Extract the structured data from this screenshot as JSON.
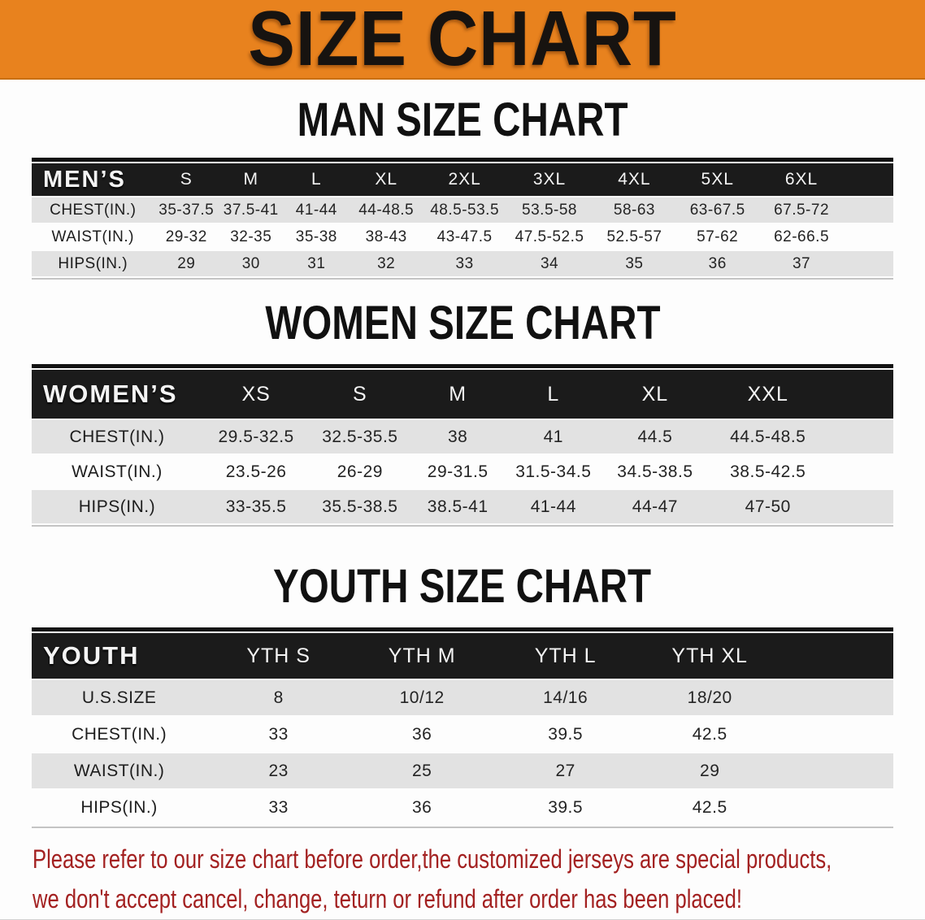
{
  "banner": {
    "title": "SIZE CHART",
    "bg_color": "#E8821E",
    "text_color": "#171310"
  },
  "sections": [
    {
      "heading": "MAN SIZE CHART",
      "table": {
        "corner": "MEN’S",
        "columns": [
          "S",
          "M",
          "L",
          "XL",
          "2XL",
          "3XL",
          "4XL",
          "5XL",
          "6XL"
        ],
        "rows": [
          {
            "label": "CHEST(IN.)",
            "values": [
              "35-37.5",
              "37.5-41",
              "41-44",
              "44-48.5",
              "48.5-53.5",
              "53.5-58",
              "58-63",
              "63-67.5",
              "67.5-72"
            ]
          },
          {
            "label": "WAIST(IN.)",
            "values": [
              "29-32",
              "32-35",
              "35-38",
              "38-43",
              "43-47.5",
              "47.5-52.5",
              "52.5-57",
              "57-62",
              "62-66.5"
            ]
          },
          {
            "label": "HIPS(IN.)",
            "values": [
              "29",
              "30",
              "31",
              "32",
              "33",
              "34",
              "35",
              "36",
              "37"
            ]
          }
        ]
      }
    },
    {
      "heading": "WOMEN SIZE CHART",
      "table": {
        "corner": "WOMEN’S",
        "columns": [
          "XS",
          "S",
          "M",
          "L",
          "XL",
          "XXL"
        ],
        "rows": [
          {
            "label": "CHEST(IN.)",
            "values": [
              "29.5-32.5",
              "32.5-35.5",
              "38",
              "41",
              "44.5",
              "44.5-48.5"
            ]
          },
          {
            "label": "WAIST(IN.)",
            "values": [
              "23.5-26",
              "26-29",
              "29-31.5",
              "31.5-34.5",
              "34.5-38.5",
              "38.5-42.5"
            ]
          },
          {
            "label": "HIPS(IN.)",
            "values": [
              "33-35.5",
              "35.5-38.5",
              "38.5-41",
              "41-44",
              "44-47",
              "47-50"
            ]
          }
        ]
      }
    },
    {
      "heading": "YOUTH SIZE CHART",
      "table": {
        "corner": "YOUTH",
        "columns": [
          "YTH S",
          "YTH M",
          "YTH L",
          "YTH XL"
        ],
        "rows": [
          {
            "label": "U.S.SIZE",
            "values": [
              "8",
              "10/12",
              "14/16",
              "18/20"
            ]
          },
          {
            "label": "CHEST(IN.)",
            "values": [
              "33",
              "36",
              "39.5",
              "42.5"
            ]
          },
          {
            "label": "WAIST(IN.)",
            "values": [
              "23",
              "25",
              "27",
              "29"
            ]
          },
          {
            "label": "HIPS(IN.)",
            "values": [
              "33",
              "36",
              "39.5",
              "42.5"
            ]
          }
        ]
      }
    }
  ],
  "footer": {
    "line1": "Please refer to our size chart before order,the customized jerseys are special products,",
    "line2": "we don't accept cancel, change, teturn or refund after order has been placed!",
    "text_color": "#A32121"
  },
  "colors": {
    "banner_orange": "#E8821E",
    "header_black": "#1B1B1B",
    "row_gray": "#E2E2E2",
    "disclaimer_red": "#A32121"
  }
}
